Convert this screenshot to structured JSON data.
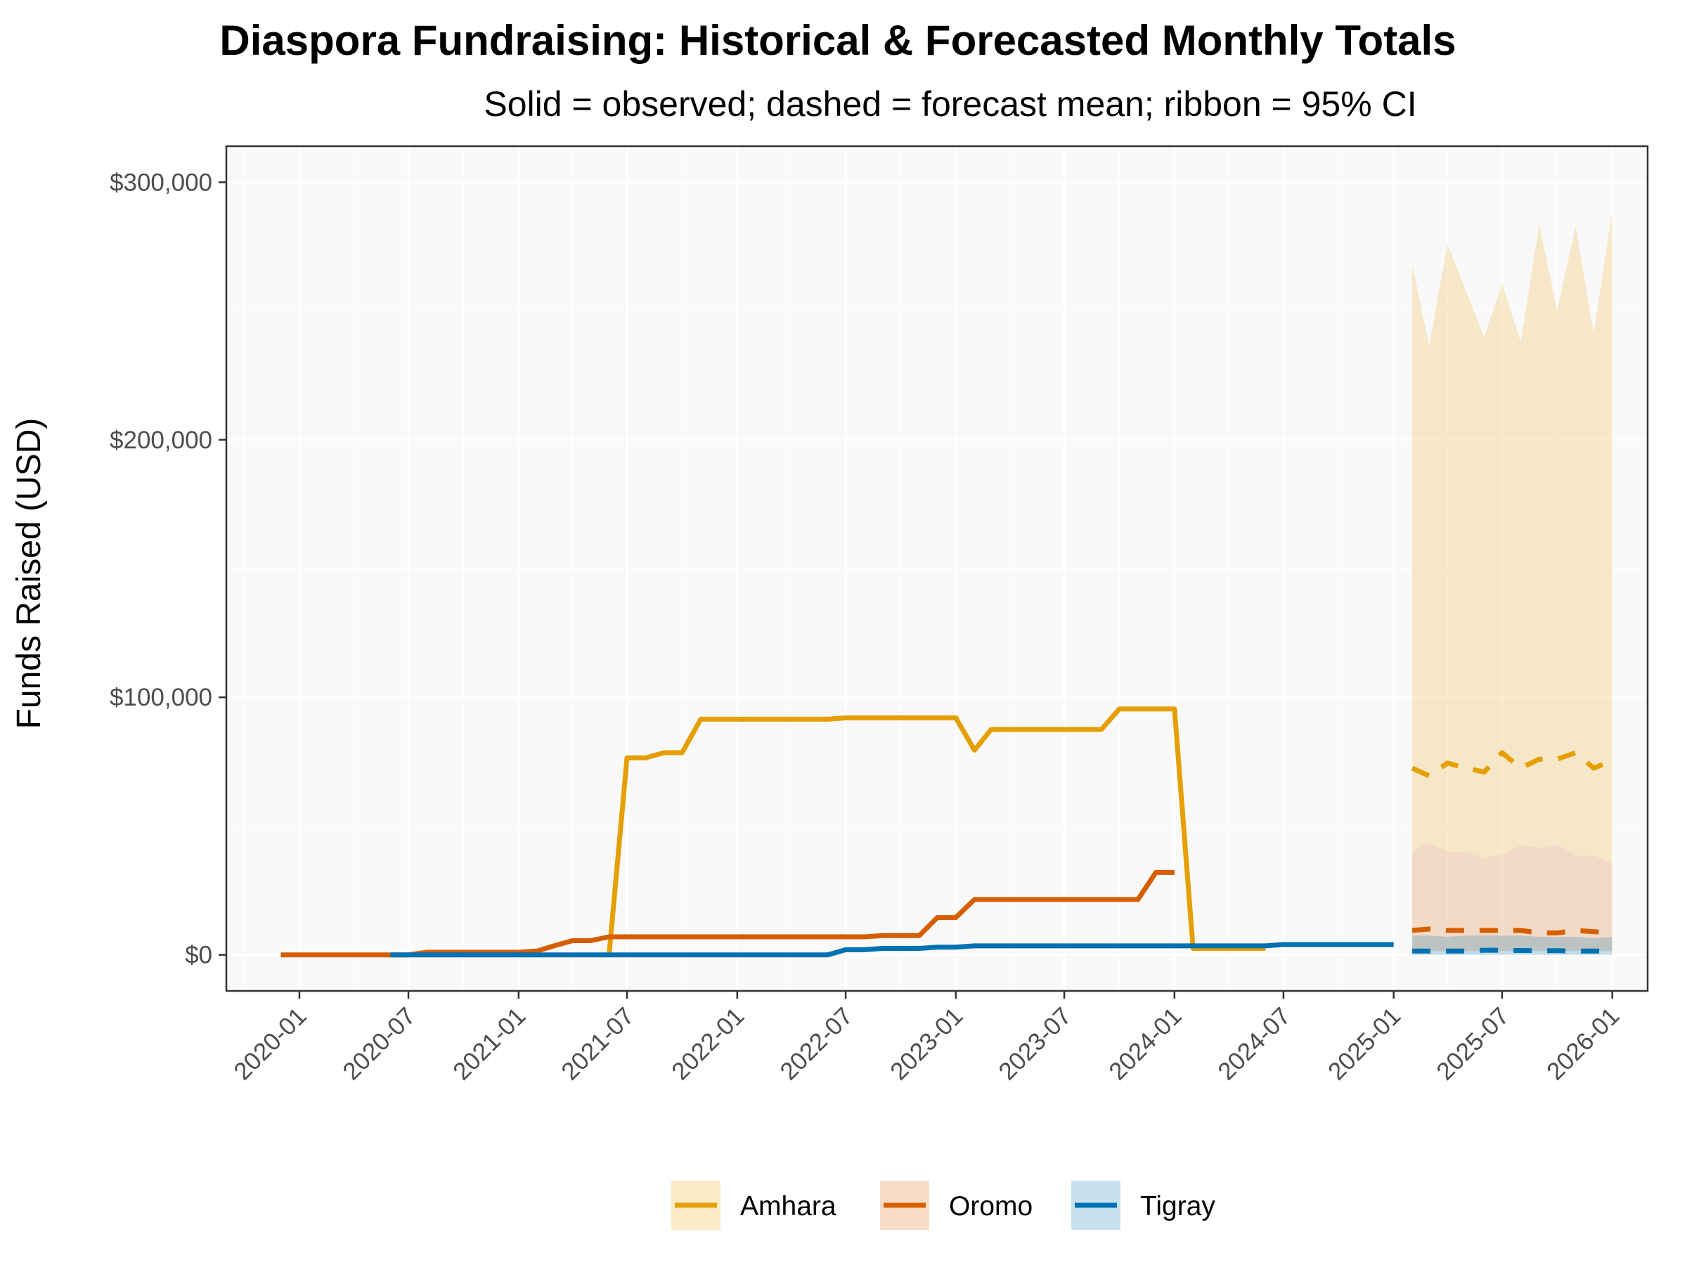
{
  "chart_data": {
    "type": "line",
    "title": "Diaspora Fundraising: Historical & Forecasted Monthly Totals",
    "subtitle": "Solid = observed; dashed = forecast mean; ribbon = 95% CI",
    "ylabel": "Funds Raised (USD)",
    "xlabel": "",
    "x_ticks": [
      "2020-01",
      "2020-07",
      "2021-01",
      "2021-07",
      "2022-01",
      "2022-07",
      "2023-01",
      "2023-07",
      "2024-01",
      "2024-07",
      "2025-01",
      "2025-07",
      "2026-01"
    ],
    "y_ticks": [
      {
        "value": 0,
        "label": "$0"
      },
      {
        "value": 100000,
        "label": "$100,000"
      },
      {
        "value": 200000,
        "label": "$200,000"
      },
      {
        "value": 300000,
        "label": "$300,000"
      }
    ],
    "xlim": [
      "2019-09-01",
      "2026-03-01"
    ],
    "ylim": [
      -14000,
      314000
    ],
    "grid": true,
    "legend_position": "bottom",
    "colors": {
      "Amhara": "#E69F00",
      "Oromo": "#D55E00",
      "Tigray": "#0072B2",
      "panel": "#F9F9F9",
      "grid": "#FFFFFF",
      "border": "#333333"
    },
    "series": [
      {
        "name": "Amhara",
        "observed": [
          [
            "2021-06-01",
            0
          ],
          [
            "2021-07-01",
            76500
          ],
          [
            "2021-08-01",
            76500
          ],
          [
            "2021-09-01",
            78500
          ],
          [
            "2021-10-01",
            78500
          ],
          [
            "2021-11-01",
            91500
          ],
          [
            "2022-06-01",
            91500
          ],
          [
            "2022-07-01",
            92000
          ],
          [
            "2022-12-01",
            92000
          ],
          [
            "2023-01-01",
            92000
          ],
          [
            "2023-02-01",
            79500
          ],
          [
            "2023-03-01",
            87500
          ],
          [
            "2023-08-01",
            87500
          ],
          [
            "2023-09-01",
            87500
          ],
          [
            "2023-10-01",
            95500
          ],
          [
            "2024-01-01",
            95500
          ],
          [
            "2024-02-01",
            2500
          ],
          [
            "2024-06-01",
            2500
          ]
        ],
        "forecast_mean": [
          [
            "2025-02-01",
            72500
          ],
          [
            "2025-03-01",
            69500
          ],
          [
            "2025-04-01",
            74500
          ],
          [
            "2025-05-01",
            72500
          ],
          [
            "2025-06-01",
            71000
          ],
          [
            "2025-07-01",
            78500
          ],
          [
            "2025-08-01",
            72500
          ],
          [
            "2025-09-01",
            76000
          ],
          [
            "2025-10-01",
            76000
          ],
          [
            "2025-11-01",
            78500
          ],
          [
            "2025-12-01",
            72500
          ],
          [
            "2026-01-01",
            75500
          ]
        ],
        "ci_lower": [
          [
            "2025-02-01",
            40500
          ],
          [
            "2025-03-01",
            43500
          ],
          [
            "2025-04-01",
            40000
          ],
          [
            "2025-05-01",
            40000
          ],
          [
            "2025-06-01",
            37500
          ],
          [
            "2025-07-01",
            39000
          ],
          [
            "2025-08-01",
            42500
          ],
          [
            "2025-09-01",
            41500
          ],
          [
            "2025-10-01",
            43000
          ],
          [
            "2025-11-01",
            38500
          ],
          [
            "2025-12-01",
            38500
          ],
          [
            "2026-01-01",
            35500
          ]
        ],
        "ci_upper": [
          [
            "2025-02-01",
            268000
          ],
          [
            "2025-03-01",
            236500
          ],
          [
            "2025-04-01",
            276000
          ],
          [
            "2025-05-01",
            258000
          ],
          [
            "2025-06-01",
            240000
          ],
          [
            "2025-07-01",
            260500
          ],
          [
            "2025-08-01",
            238000
          ],
          [
            "2025-09-01",
            283500
          ],
          [
            "2025-10-01",
            250000
          ],
          [
            "2025-11-01",
            283000
          ],
          [
            "2025-12-01",
            241500
          ],
          [
            "2026-01-01",
            289000
          ]
        ]
      },
      {
        "name": "Oromo",
        "observed": [
          [
            "2019-12-01",
            0
          ],
          [
            "2020-07-01",
            0
          ],
          [
            "2020-08-01",
            1000
          ],
          [
            "2021-01-01",
            1000
          ],
          [
            "2021-02-01",
            1500
          ],
          [
            "2021-03-01",
            3500
          ],
          [
            "2021-04-01",
            5500
          ],
          [
            "2021-05-01",
            5500
          ],
          [
            "2021-06-01",
            7000
          ],
          [
            "2022-05-01",
            7000
          ],
          [
            "2022-06-01",
            7000
          ],
          [
            "2022-08-01",
            7000
          ],
          [
            "2022-09-01",
            7500
          ],
          [
            "2022-11-01",
            7500
          ],
          [
            "2022-12-01",
            14500
          ],
          [
            "2023-01-01",
            14500
          ],
          [
            "2023-02-01",
            21500
          ],
          [
            "2023-11-01",
            21500
          ],
          [
            "2023-12-01",
            32000
          ],
          [
            "2024-01-01",
            32000
          ]
        ],
        "forecast_mean": [
          [
            "2025-02-01",
            9500
          ],
          [
            "2025-03-01",
            10000
          ],
          [
            "2025-04-01",
            9500
          ],
          [
            "2025-05-01",
            9500
          ],
          [
            "2025-06-01",
            9500
          ],
          [
            "2025-07-01",
            9500
          ],
          [
            "2025-08-01",
            9500
          ],
          [
            "2025-09-01",
            8500
          ],
          [
            "2025-10-01",
            8500
          ],
          [
            "2025-11-01",
            9500
          ],
          [
            "2025-12-01",
            9000
          ],
          [
            "2026-01-01",
            8500
          ]
        ],
        "ci_lower": [
          [
            "2025-02-01",
            1500
          ],
          [
            "2025-03-01",
            1500
          ],
          [
            "2025-04-01",
            1500
          ],
          [
            "2025-05-01",
            1500
          ],
          [
            "2025-06-01",
            1500
          ],
          [
            "2025-07-01",
            1500
          ],
          [
            "2025-08-01",
            1500
          ],
          [
            "2025-09-01",
            1500
          ],
          [
            "2025-10-01",
            1500
          ],
          [
            "2025-11-01",
            1500
          ],
          [
            "2025-12-01",
            1500
          ],
          [
            "2026-01-01",
            1500
          ]
        ],
        "ci_upper": [
          [
            "2025-02-01",
            40500
          ],
          [
            "2025-03-01",
            43500
          ],
          [
            "2025-04-01",
            40000
          ],
          [
            "2025-05-01",
            40000
          ],
          [
            "2025-06-01",
            37500
          ],
          [
            "2025-07-01",
            39000
          ],
          [
            "2025-08-01",
            42500
          ],
          [
            "2025-09-01",
            41500
          ],
          [
            "2025-10-01",
            43000
          ],
          [
            "2025-11-01",
            38500
          ],
          [
            "2025-12-01",
            38500
          ],
          [
            "2026-01-01",
            35500
          ]
        ]
      },
      {
        "name": "Tigray",
        "observed": [
          [
            "2020-06-01",
            0
          ],
          [
            "2022-06-01",
            0
          ],
          [
            "2022-07-01",
            2000
          ],
          [
            "2022-08-01",
            2000
          ],
          [
            "2022-09-01",
            2500
          ],
          [
            "2022-11-01",
            2500
          ],
          [
            "2022-12-01",
            3000
          ],
          [
            "2023-01-01",
            3000
          ],
          [
            "2023-02-01",
            3500
          ],
          [
            "2024-06-01",
            3500
          ],
          [
            "2024-07-01",
            4000
          ],
          [
            "2025-01-01",
            4000
          ]
        ],
        "forecast_mean": [
          [
            "2025-02-01",
            1500
          ],
          [
            "2025-03-01",
            1500
          ],
          [
            "2025-04-01",
            1500
          ],
          [
            "2025-05-01",
            1500
          ],
          [
            "2025-06-01",
            1800
          ],
          [
            "2025-07-01",
            1800
          ],
          [
            "2025-08-01",
            1700
          ],
          [
            "2025-09-01",
            1600
          ],
          [
            "2025-10-01",
            1600
          ],
          [
            "2025-11-01",
            1500
          ],
          [
            "2025-12-01",
            1500
          ],
          [
            "2026-01-01",
            1500
          ]
        ],
        "ci_lower": [
          [
            "2025-02-01",
            0
          ],
          [
            "2025-03-01",
            0
          ],
          [
            "2025-04-01",
            0
          ],
          [
            "2025-05-01",
            0
          ],
          [
            "2025-06-01",
            0
          ],
          [
            "2025-07-01",
            0
          ],
          [
            "2025-08-01",
            0
          ],
          [
            "2025-09-01",
            0
          ],
          [
            "2025-10-01",
            0
          ],
          [
            "2025-11-01",
            0
          ],
          [
            "2025-12-01",
            0
          ],
          [
            "2026-01-01",
            0
          ]
        ],
        "ci_upper": [
          [
            "2025-02-01",
            7500
          ],
          [
            "2025-03-01",
            7500
          ],
          [
            "2025-04-01",
            7000
          ],
          [
            "2025-05-01",
            7500
          ],
          [
            "2025-06-01",
            7500
          ],
          [
            "2025-07-01",
            7500
          ],
          [
            "2025-08-01",
            7500
          ],
          [
            "2025-09-01",
            7000
          ],
          [
            "2025-10-01",
            7000
          ],
          [
            "2025-11-01",
            7000
          ],
          [
            "2025-12-01",
            6500
          ],
          [
            "2026-01-01",
            7000
          ]
        ]
      }
    ],
    "legend": [
      {
        "name": "Amhara"
      },
      {
        "name": "Oromo"
      },
      {
        "name": "Tigray"
      }
    ]
  }
}
